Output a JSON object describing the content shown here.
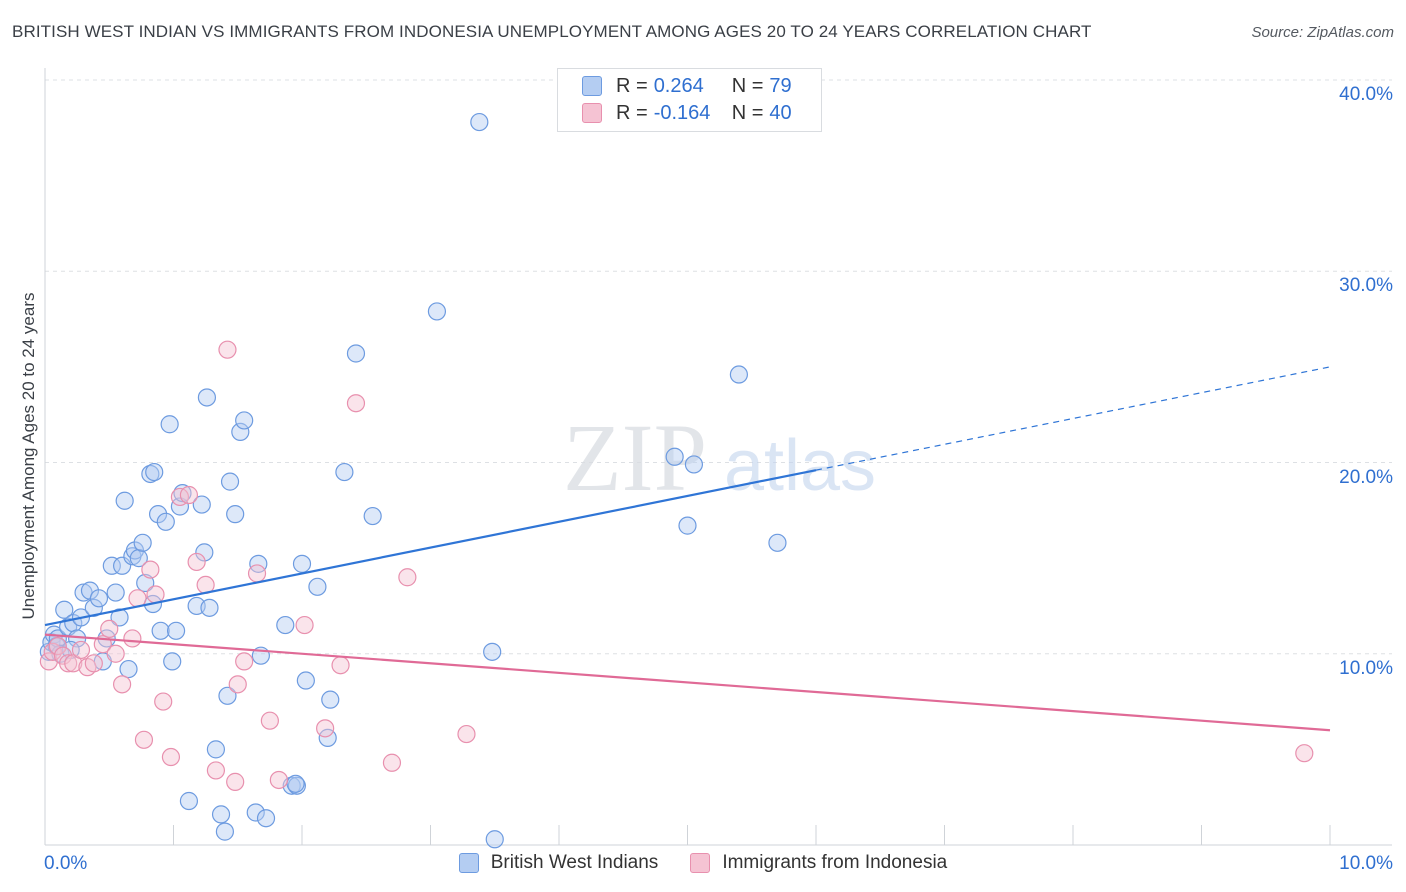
{
  "header": {
    "title": "BRITISH WEST INDIAN VS IMMIGRANTS FROM INDONESIA UNEMPLOYMENT AMONG AGES 20 TO 24 YEARS CORRELATION CHART",
    "source": "Source: ZipAtlas.com"
  },
  "watermark": {
    "zip": "ZIP",
    "atlas": "atlas"
  },
  "legend_top": {
    "r_label": "R =",
    "n_label": "N =",
    "rows": [
      {
        "r": "0.264",
        "n": "79"
      },
      {
        "r": "-0.164",
        "n": "40"
      }
    ]
  },
  "legend_bottom": [
    {
      "label": "British West Indians"
    },
    {
      "label": "Immigrants from Indonesia"
    }
  ],
  "colors": {
    "blue_fill": "#b4cdf2",
    "blue_stroke": "#6d9be0",
    "blue_line": "#2f75d6",
    "pink_fill": "#f5c3d3",
    "pink_stroke": "#e890ae",
    "pink_line": "#e06a96",
    "tick_text": "#2f6fd0",
    "grid": "#dde0e4"
  },
  "chart_data": {
    "type": "scatter",
    "title": "BRITISH WEST INDIAN VS IMMIGRANTS FROM INDONESIA UNEMPLOYMENT AMONG AGES 20 TO 24 YEARS CORRELATION CHART",
    "xlabel": "",
    "ylabel": "Unemployment Among Ages 20 to 24 years",
    "xlim": [
      0,
      10
    ],
    "ylim": [
      0,
      40
    ],
    "x_tick_labels": [
      "0.0%",
      "10.0%"
    ],
    "y_ticks": [
      10,
      20,
      30,
      40
    ],
    "y_tick_labels": [
      "10.0%",
      "20.0%",
      "30.0%",
      "40.0%"
    ],
    "grid": true,
    "series": [
      {
        "name": "British West Indians",
        "color": "#6d9be0",
        "points": [
          [
            0.03,
            10.1
          ],
          [
            0.05,
            10.6
          ],
          [
            0.07,
            11.0
          ],
          [
            0.09,
            10.4
          ],
          [
            0.1,
            10.8
          ],
          [
            0.12,
            10.0
          ],
          [
            0.15,
            12.3
          ],
          [
            0.18,
            11.4
          ],
          [
            0.22,
            11.6
          ],
          [
            0.25,
            10.8
          ],
          [
            0.28,
            11.9
          ],
          [
            0.3,
            13.2
          ],
          [
            0.35,
            13.3
          ],
          [
            0.38,
            12.4
          ],
          [
            0.42,
            12.9
          ],
          [
            0.45,
            9.6
          ],
          [
            0.48,
            10.8
          ],
          [
            0.52,
            14.6
          ],
          [
            0.55,
            13.2
          ],
          [
            0.58,
            11.9
          ],
          [
            0.6,
            14.6
          ],
          [
            0.62,
            18.0
          ],
          [
            0.65,
            9.2
          ],
          [
            0.68,
            15.1
          ],
          [
            0.7,
            15.4
          ],
          [
            0.73,
            15.0
          ],
          [
            0.76,
            15.8
          ],
          [
            0.78,
            13.7
          ],
          [
            0.82,
            19.4
          ],
          [
            0.84,
            12.6
          ],
          [
            0.85,
            19.5
          ],
          [
            0.88,
            17.3
          ],
          [
            0.9,
            11.2
          ],
          [
            0.94,
            16.9
          ],
          [
            0.97,
            22.0
          ],
          [
            0.99,
            9.6
          ],
          [
            1.02,
            11.2
          ],
          [
            1.05,
            17.7
          ],
          [
            1.07,
            18.4
          ],
          [
            1.12,
            2.3
          ],
          [
            1.18,
            12.5
          ],
          [
            1.22,
            17.8
          ],
          [
            1.24,
            15.3
          ],
          [
            1.26,
            23.4
          ],
          [
            1.28,
            12.4
          ],
          [
            1.33,
            5.0
          ],
          [
            1.37,
            1.6
          ],
          [
            1.4,
            0.7
          ],
          [
            1.42,
            7.8
          ],
          [
            1.44,
            19.0
          ],
          [
            1.48,
            17.3
          ],
          [
            1.52,
            21.6
          ],
          [
            1.55,
            22.2
          ],
          [
            1.64,
            1.7
          ],
          [
            1.66,
            14.7
          ],
          [
            1.68,
            9.9
          ],
          [
            1.72,
            1.4
          ],
          [
            1.87,
            11.5
          ],
          [
            1.92,
            3.1
          ],
          [
            1.96,
            3.1
          ],
          [
            2.0,
            14.7
          ],
          [
            2.03,
            8.6
          ],
          [
            2.12,
            13.5
          ],
          [
            2.2,
            5.6
          ],
          [
            2.22,
            7.6
          ],
          [
            2.33,
            19.5
          ],
          [
            2.42,
            25.7
          ],
          [
            2.55,
            17.2
          ],
          [
            3.05,
            27.9
          ],
          [
            3.38,
            37.8
          ],
          [
            3.48,
            10.1
          ],
          [
            3.5,
            0.3
          ],
          [
            4.9,
            20.3
          ],
          [
            5.0,
            16.7
          ],
          [
            5.05,
            19.9
          ],
          [
            5.4,
            24.6
          ],
          [
            5.7,
            15.8
          ],
          [
            1.95,
            3.2
          ],
          [
            0.2,
            10.2
          ]
        ],
        "trend": {
          "x": [
            0.0,
            6.0
          ],
          "y": [
            11.5,
            19.6
          ],
          "dashed_extension": {
            "x": [
              6.0,
              10.0
            ],
            "y": [
              19.6,
              25.0
            ]
          }
        }
      },
      {
        "name": "Immigrants from Indonesia",
        "color": "#e890ae",
        "points": [
          [
            0.03,
            9.6
          ],
          [
            0.06,
            10.1
          ],
          [
            0.1,
            10.4
          ],
          [
            0.14,
            9.9
          ],
          [
            0.18,
            9.5
          ],
          [
            0.22,
            9.5
          ],
          [
            0.28,
            10.2
          ],
          [
            0.33,
            9.3
          ],
          [
            0.38,
            9.5
          ],
          [
            0.45,
            10.5
          ],
          [
            0.5,
            11.3
          ],
          [
            0.55,
            10.0
          ],
          [
            0.6,
            8.4
          ],
          [
            0.68,
            10.8
          ],
          [
            0.72,
            12.9
          ],
          [
            0.77,
            5.5
          ],
          [
            0.82,
            14.4
          ],
          [
            0.86,
            13.1
          ],
          [
            0.92,
            7.5
          ],
          [
            0.98,
            4.6
          ],
          [
            1.05,
            18.2
          ],
          [
            1.12,
            18.3
          ],
          [
            1.18,
            14.8
          ],
          [
            1.25,
            13.6
          ],
          [
            1.33,
            3.9
          ],
          [
            1.42,
            25.9
          ],
          [
            1.48,
            3.3
          ],
          [
            1.5,
            8.4
          ],
          [
            1.55,
            9.6
          ],
          [
            1.65,
            14.2
          ],
          [
            1.75,
            6.5
          ],
          [
            1.82,
            3.4
          ],
          [
            2.02,
            11.5
          ],
          [
            2.18,
            6.1
          ],
          [
            2.3,
            9.4
          ],
          [
            2.42,
            23.1
          ],
          [
            2.7,
            4.3
          ],
          [
            2.82,
            14.0
          ],
          [
            3.28,
            5.8
          ],
          [
            9.8,
            4.8
          ]
        ],
        "trend": {
          "x": [
            0.0,
            10.0
          ],
          "y": [
            11.0,
            6.0
          ]
        }
      }
    ]
  }
}
